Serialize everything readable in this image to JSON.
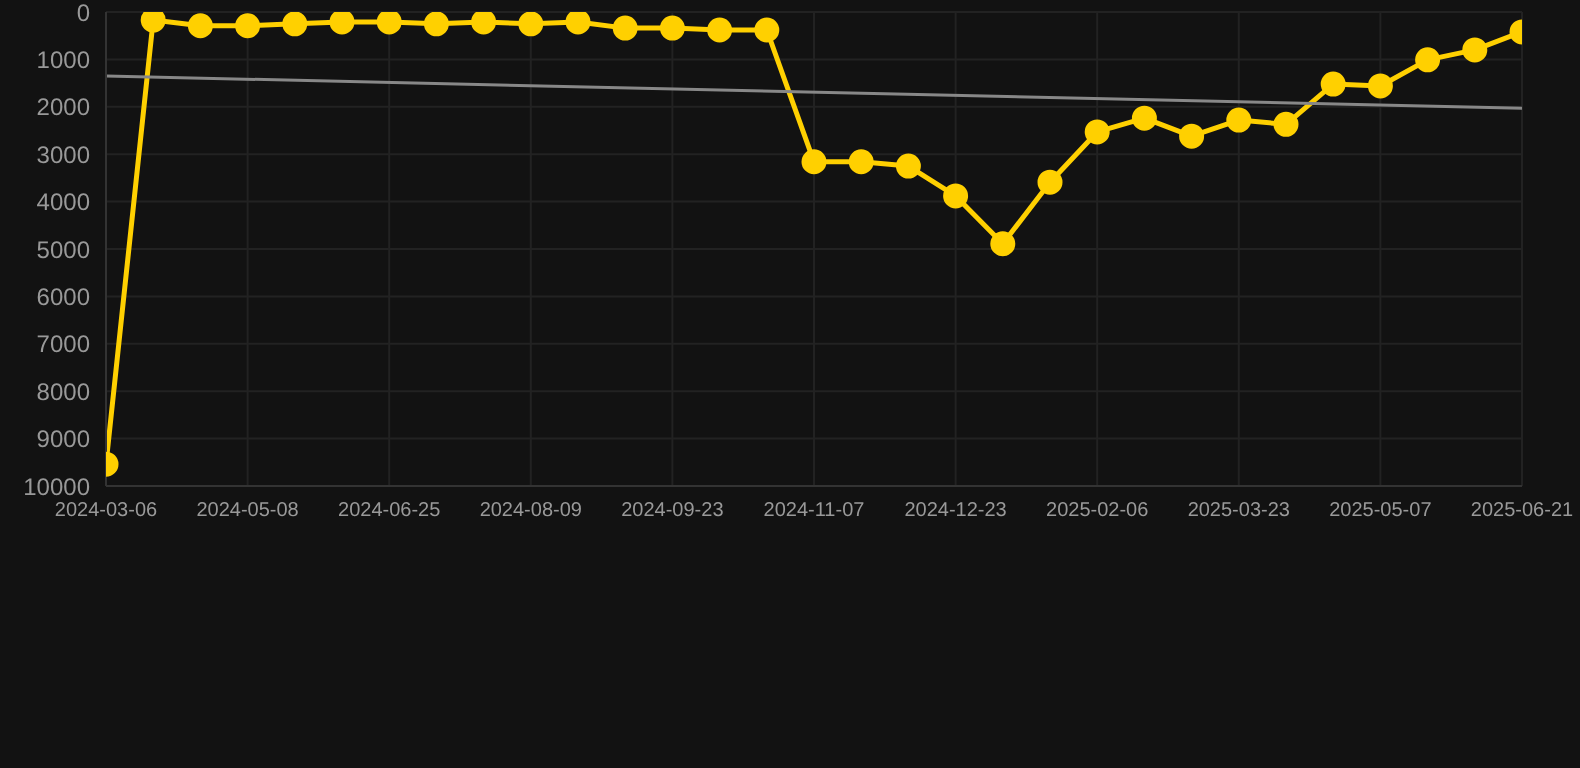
{
  "chart_data": {
    "type": "line",
    "categories": [
      "2024-03-06",
      null,
      null,
      "2024-05-08",
      null,
      null,
      "2024-06-25",
      null,
      null,
      "2024-08-09",
      null,
      null,
      "2024-09-23",
      null,
      null,
      "2024-11-07",
      null,
      null,
      "2024-12-23",
      null,
      null,
      "2025-02-06",
      null,
      null,
      "2025-03-23",
      null,
      null,
      "2025-05-07",
      null,
      null,
      "2025-06-21"
    ],
    "series": [
      {
        "color": "#ffd000",
        "marker": "circle",
        "values": [
          9540,
          170,
          290,
          290,
          250,
          210,
          210,
          250,
          210,
          250,
          210,
          340,
          340,
          380,
          380,
          3160,
          3160,
          3250,
          3880,
          4890,
          3590,
          2530,
          2240,
          2620,
          2280,
          2370,
          1520,
          1560,
          1010,
          800,
          420
        ]
      },
      {
        "type": "line",
        "color": "#888888",
        "marker": "none",
        "values": [
          1350,
          null,
          null,
          null,
          null,
          null,
          null,
          null,
          null,
          null,
          null,
          null,
          null,
          null,
          null,
          null,
          null,
          null,
          null,
          null,
          null,
          null,
          null,
          null,
          null,
          null,
          null,
          null,
          null,
          null,
          2030
        ]
      }
    ],
    "ylim": [
      10000,
      0
    ],
    "yticks": [
      0,
      1000,
      2000,
      3000,
      4000,
      5000,
      6000,
      7000,
      8000,
      9000,
      10000
    ],
    "grid": true
  }
}
